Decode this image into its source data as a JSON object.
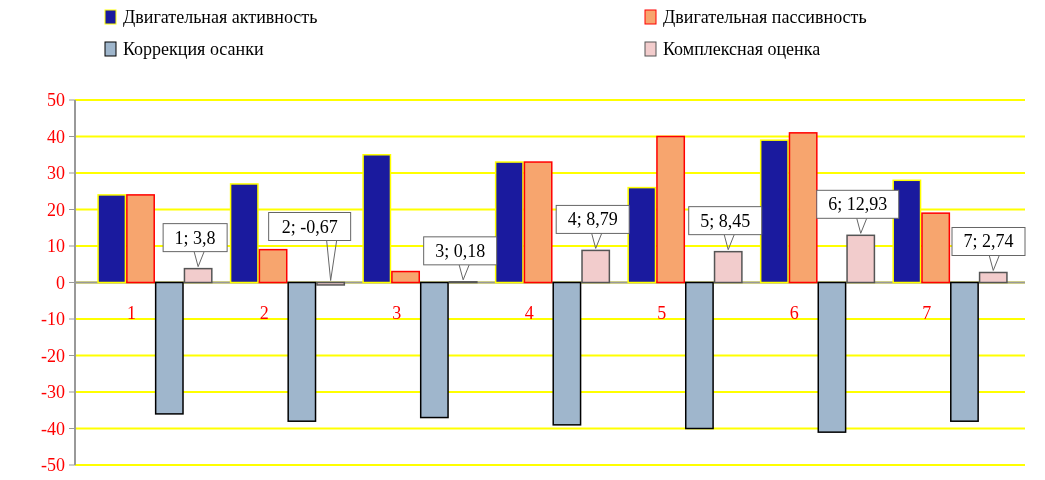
{
  "chart_data": {
    "type": "bar",
    "categories": [
      "1",
      "2",
      "3",
      "4",
      "5",
      "6",
      "7"
    ],
    "series": [
      {
        "name": "Двигательная активность",
        "color": "#1a1a9e",
        "values": [
          24,
          27,
          35,
          33,
          26,
          39,
          28
        ]
      },
      {
        "name": "Двигательная пассивность",
        "color": "#f7a56e",
        "values": [
          24,
          9,
          3,
          33,
          40,
          41,
          19
        ]
      },
      {
        "name": "Коррекция осанки",
        "color": "#9fb6cc",
        "values": [
          -36,
          -38,
          -37,
          -39,
          -40,
          -41,
          -38
        ]
      },
      {
        "name": "Комплексная оценка",
        "color": "#f2cccc",
        "values": [
          3.8,
          -0.67,
          0.18,
          8.79,
          8.45,
          12.93,
          2.74
        ],
        "value_labels": [
          "1; 3,8",
          "2; -0,67",
          "3; 0,18",
          "4; 8,79",
          "5; 8,45",
          "6; 12,93",
          "7; 2,74"
        ]
      }
    ],
    "ylim": [
      -50,
      50
    ],
    "yticks": [
      -50,
      -40,
      -30,
      -20,
      -10,
      0,
      10,
      20,
      30,
      40,
      50
    ],
    "grid": "y",
    "legend": "top"
  }
}
